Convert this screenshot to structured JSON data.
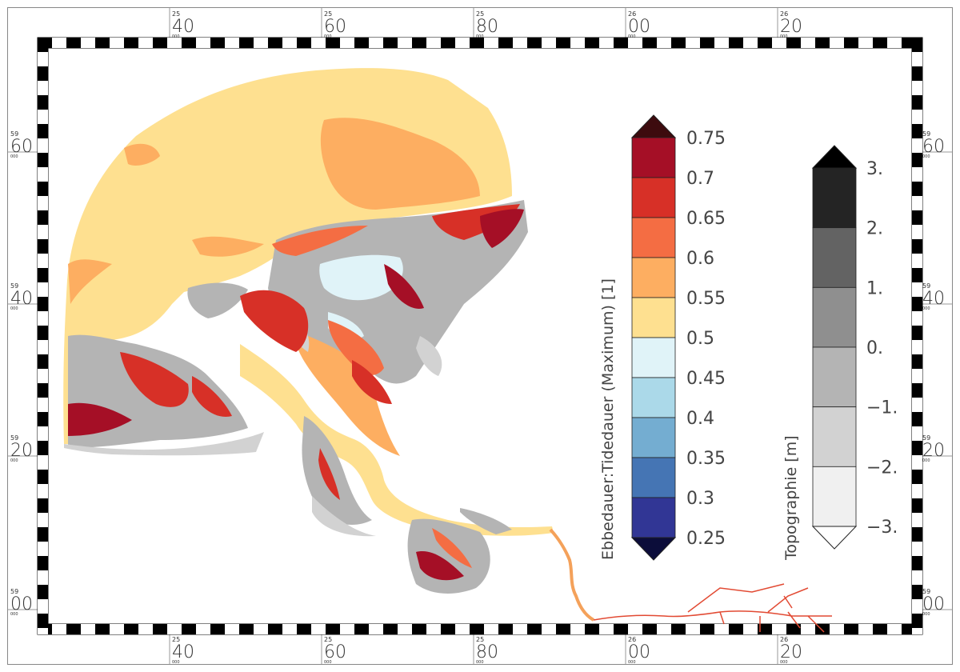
{
  "map": {
    "x_ticks": [
      {
        "sup": "25",
        "big": "40",
        "sub": "000"
      },
      {
        "sup": "25",
        "big": "60",
        "sub": "000"
      },
      {
        "sup": "25",
        "big": "80",
        "sub": "000"
      },
      {
        "sup": "26",
        "big": "00",
        "sub": "000"
      },
      {
        "sup": "26",
        "big": "20",
        "sub": "000"
      }
    ],
    "y_ticks": [
      {
        "sup": "59",
        "big": "60",
        "sub": "000"
      },
      {
        "sup": "59",
        "big": "40",
        "sub": "000"
      },
      {
        "sup": "59",
        "big": "20",
        "sub": "000"
      },
      {
        "sup": "59",
        "big": "00",
        "sub": "000"
      }
    ]
  },
  "colorbar_ratio": {
    "title": "Ebbedauer:Tidedauer (Maximum) [1]",
    "labels": [
      "0.75",
      "0.7",
      "0.65",
      "0.6",
      "0.55",
      "0.5",
      "0.45",
      "0.4",
      "0.35",
      "0.3",
      "0.25"
    ],
    "colors": [
      "#a50f26",
      "#d73027",
      "#f46d43",
      "#fdae61",
      "#fee090",
      "#e0f3f8",
      "#abd9e9",
      "#74add1",
      "#4575b4",
      "#313695"
    ],
    "over_color": "#3d0b0e",
    "under_color": "#0c0d3a"
  },
  "colorbar_topo": {
    "title": "Topographie [m]",
    "labels": [
      "3.",
      "2.",
      "1.",
      "0.",
      "−1.",
      "−2.",
      "−3."
    ],
    "colors": [
      "#242424",
      "#636363",
      "#8f8f8f",
      "#b4b4b4",
      "#d2d2d2",
      "#f0f0f0"
    ],
    "over_color": "#000000",
    "under_color": "#ffffff"
  },
  "legend_colors": {
    "sea": "#fee090",
    "channel": "#fdae61",
    "flat_high": "#a50f26",
    "flat_mid": "#d73027",
    "flat_low": "#f46d43",
    "tidal_light": "#e0f3f8",
    "topo_gray": "#b4b4b4",
    "topo_light": "#d2d2d2",
    "topo_dark": "#8f8f8f"
  }
}
